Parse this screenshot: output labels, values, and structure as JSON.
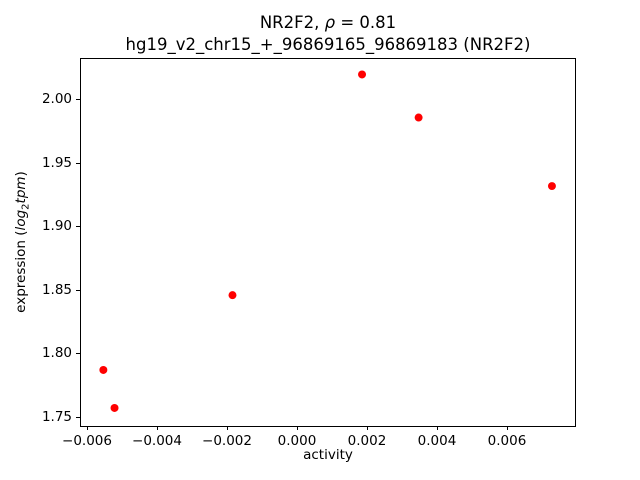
{
  "chart_data": {
    "type": "scatter",
    "title_part1": "NR2F2, ",
    "title_rho": "ρ",
    "title_part2": " = 0.81",
    "title_line2": "hg19_v2_chr15_+_96869165_96869183 (NR2F2)",
    "xlabel": "activity",
    "ylabel_prefix": "expression (",
    "ylabel_math_log": "log",
    "ylabel_math_sub": "2",
    "ylabel_math_tpm": "tpm",
    "ylabel_suffix": ")",
    "marker_color": "#ff0000",
    "marker_radius": 4,
    "points": [
      {
        "x": -0.00557,
        "y": 1.787
      },
      {
        "x": -0.00525,
        "y": 1.757
      },
      {
        "x": -0.00187,
        "y": 1.846
      },
      {
        "x": 0.00184,
        "y": 2.02
      },
      {
        "x": 0.00346,
        "y": 1.986
      },
      {
        "x": 0.00728,
        "y": 1.932
      }
    ],
    "xlim": [
      -0.00621,
      0.00794
    ],
    "ylim": [
      1.7428,
      2.0322
    ],
    "x_ticks": [
      -0.006,
      -0.004,
      -0.002,
      0.0,
      0.002,
      0.004,
      0.006
    ],
    "x_tick_labels": [
      "−0.006",
      "−0.004",
      "−0.002",
      "0.000",
      "0.002",
      "0.004",
      "0.006"
    ],
    "y_ticks": [
      1.75,
      1.8,
      1.85,
      1.9,
      1.95,
      2.0
    ],
    "y_tick_labels": [
      "1.75",
      "1.80",
      "1.85",
      "1.90",
      "1.95",
      "2.00"
    ],
    "grid": false,
    "legend": null
  }
}
